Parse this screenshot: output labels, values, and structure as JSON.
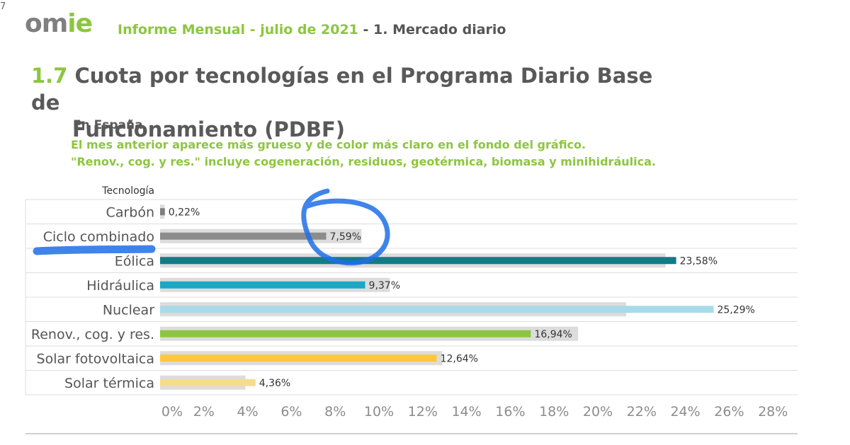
{
  "page_number": "7",
  "logo": {
    "part1": "om",
    "part2": "ie"
  },
  "header": {
    "report": "Informe Mensual - julio de 2021",
    "separator": " - ",
    "section": "1. Mercado diario"
  },
  "title": {
    "number": "1.7",
    "line1": "Cuota por tecnologías en el Programa Diario Base de",
    "line2": "Funcionamiento (PDBF)"
  },
  "subtitle": "En España",
  "notes": [
    "El mes anterior aparece más grueso y de color más claro en el fondo del gráfico.",
    "\"Renov., cog. y res.\" incluye cogeneración, residuos, geotérmica, biomasa y minihidráulica."
  ],
  "colors": {
    "previous_month": "#dcdcdc",
    "brand_green": "#8cc63f",
    "annotation_blue": "#1e6fe8"
  },
  "chart_data": {
    "type": "bar",
    "orientation": "horizontal",
    "category_header": "Tecnología",
    "categories": [
      "Carbón",
      "Ciclo combinado",
      "Eólica",
      "Hidráulica",
      "Nuclear",
      "Renov., cog. y res.",
      "Solar fotovoltaica",
      "Solar térmica"
    ],
    "series": [
      {
        "role": "current",
        "values": [
          0.22,
          7.59,
          23.58,
          9.37,
          25.29,
          16.94,
          12.64,
          4.36
        ],
        "labels": [
          "0,22%",
          "7,59%",
          "23,58%",
          "9,37%",
          "25,29%",
          "16,94%",
          "12,64%",
          "4,36%"
        ],
        "colors": [
          "#7f7f7f",
          "#8c8c8c",
          "#137b86",
          "#1aa8c4",
          "#a8dbe8",
          "#8cc63f",
          "#ffc73b",
          "#f6dc8d"
        ]
      },
      {
        "role": "previous_month",
        "values": [
          0.2,
          9.2,
          23.1,
          10.5,
          21.3,
          19.1,
          12.9,
          3.9
        ]
      }
    ],
    "xlim": [
      0,
      28
    ],
    "xticks": [
      "0%",
      "2%",
      "4%",
      "6%",
      "8%",
      "10%",
      "12%",
      "14%",
      "16%",
      "18%",
      "20%",
      "22%",
      "24%",
      "26%",
      "28%"
    ],
    "grid": "horizontal row separators",
    "annotations": "hand-drawn blue circle around 7,59% and blue stroke at Eólica"
  }
}
